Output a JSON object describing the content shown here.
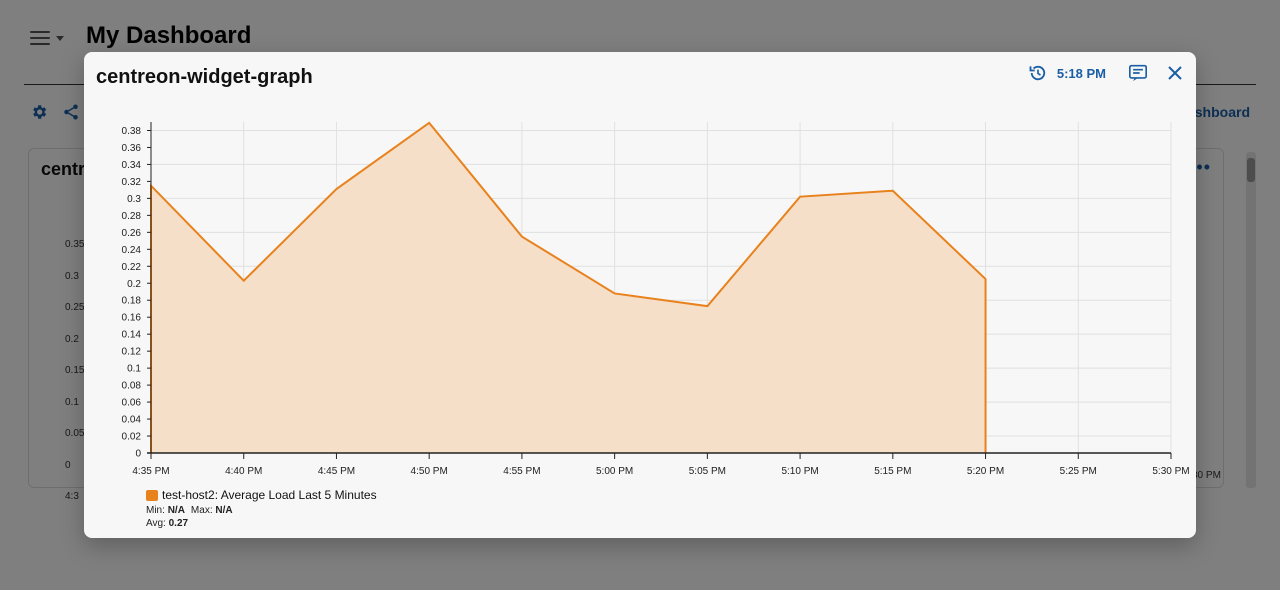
{
  "dashboard": {
    "title": "My Dashboard",
    "back_link_label": "ashboard",
    "widget_title_partial": "centr",
    "more_icon": "more-horizontal-icon",
    "bg_ticks": [
      "0.35",
      "0.3",
      "0.25",
      "0.2",
      "0.15",
      "0.1",
      "0.05",
      "0",
      "4:3"
    ],
    "bg_tail_label": "30 PM"
  },
  "modal": {
    "title": "centreon-widget-graph",
    "refresh_time": "5:18 PM",
    "icons": {
      "refresh": "history-clock-icon",
      "display_mode": "subtitles-icon",
      "close": "close-icon"
    }
  },
  "colors": {
    "series": "#e8821d",
    "series_fill": "#f6dfc9",
    "accent": "#1a5fa6"
  },
  "chart_data": {
    "type": "area",
    "x": [
      "4:35 PM",
      "4:40 PM",
      "4:45 PM",
      "4:50 PM",
      "4:55 PM",
      "5:00 PM",
      "5:05 PM",
      "5:10 PM",
      "5:15 PM",
      "5:20 PM"
    ],
    "x_ticks": [
      "4:35 PM",
      "4:40 PM",
      "4:45 PM",
      "4:50 PM",
      "4:55 PM",
      "5:00 PM",
      "5:05 PM",
      "5:10 PM",
      "5:15 PM",
      "5:20 PM",
      "5:25 PM",
      "5:30 PM"
    ],
    "y_ticks": [
      "0",
      "0.02",
      "0.04",
      "0.06",
      "0.08",
      "0.1",
      "0.12",
      "0.14",
      "0.16",
      "0.18",
      "0.2",
      "0.22",
      "0.24",
      "0.26",
      "0.28",
      "0.3",
      "0.32",
      "0.34",
      "0.36",
      "0.38"
    ],
    "ylim": [
      0,
      0.39
    ],
    "grid": true,
    "series": [
      {
        "name": "test-host2: Average Load Last 5 Minutes",
        "values": [
          0.315,
          0.203,
          0.311,
          0.389,
          0.255,
          0.188,
          0.173,
          0.302,
          0.309,
          0.205
        ],
        "min": "N/A",
        "max": "N/A",
        "avg": "0.27"
      }
    ],
    "legend": "bottom-left"
  },
  "legend_labels": {
    "min": "Min:",
    "max": "Max:",
    "avg": "Avg:"
  }
}
